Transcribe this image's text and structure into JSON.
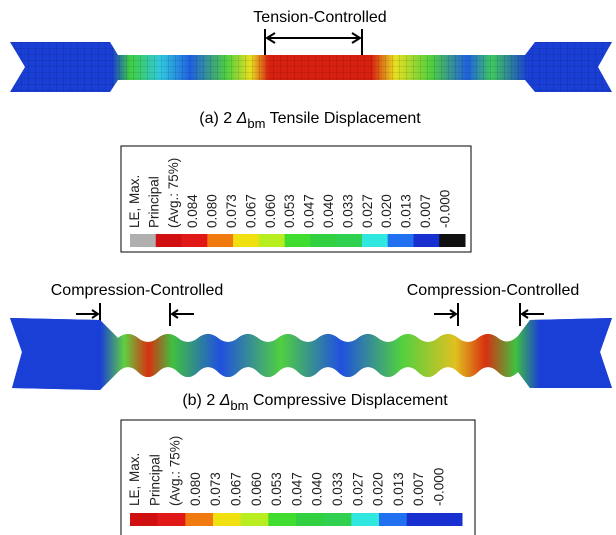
{
  "panel_a": {
    "annotation": "Tension-Controlled",
    "caption": {
      "prefix": "(a) 2",
      "symbol": "Δ",
      "subscript": "bm",
      "suffix": "Tensile Displacement"
    },
    "legend": {
      "title": [
        "LE, Max.",
        "Principal",
        "(Avg.: 75%)"
      ],
      "labels": [
        "0.084",
        "0.080",
        "0.073",
        "0.067",
        "0.060",
        "0.053",
        "0.047",
        "0.040",
        "0.033",
        "0.027",
        "0.020",
        "0.013",
        "0.007",
        "-0.000"
      ],
      "colors": [
        "#b0b0b0",
        "#d01010",
        "#e01818",
        "#f07a10",
        "#f0e010",
        "#b8ee20",
        "#40dc30",
        "#30d040",
        "#30d050",
        "#30e8e0",
        "#2070f0",
        "#1830d0",
        "#101010"
      ]
    }
  },
  "panel_b": {
    "annotations": [
      "Compression-Controlled",
      "Compression-Controlled"
    ],
    "caption": {
      "prefix": "(b) 2",
      "symbol": "Δ",
      "subscript": "bm",
      "suffix": "Compressive Displacement"
    },
    "legend": {
      "title": [
        "LE, Max.",
        "Principal",
        "(Avg.: 75%)"
      ],
      "labels": [
        "0.080",
        "0.073",
        "0.067",
        "0.060",
        "0.053",
        "0.047",
        "0.040",
        "0.033",
        "0.027",
        "0.020",
        "0.013",
        "0.007",
        "-0.000"
      ],
      "colors": [
        "#d01010",
        "#e01818",
        "#f07a10",
        "#f0e010",
        "#b8ee20",
        "#40dc30",
        "#30d040",
        "#30d050",
        "#30e8e0",
        "#2070f0",
        "#1830d0",
        "#1830d0"
      ]
    }
  }
}
